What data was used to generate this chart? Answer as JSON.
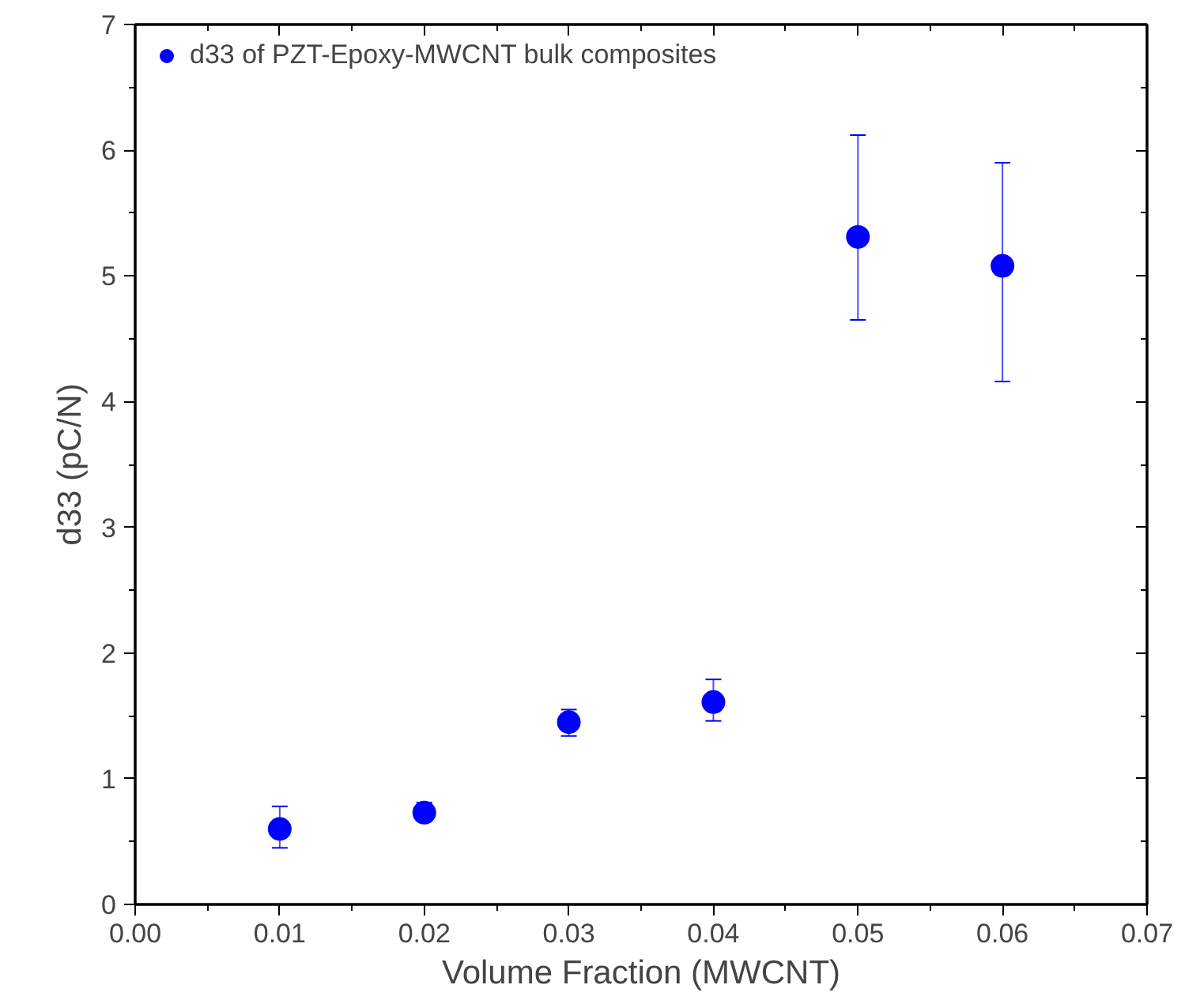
{
  "chart_data": {
    "type": "scatter",
    "xlabel": "Volume Fraction (MWCNT)",
    "ylabel": "d33 (pC/N)",
    "x": [
      0.01,
      0.02,
      0.03,
      0.04,
      0.05,
      0.06
    ],
    "series": [
      {
        "name": "d33 of PZT-Epoxy-MWCNT bulk composites",
        "color": "#0000ff",
        "values": [
          0.6,
          0.73,
          1.45,
          1.61,
          5.31,
          5.08
        ],
        "errors": [
          [
            0.45,
            0.78
          ],
          [
            0.67,
            0.81
          ],
          [
            1.34,
            1.55
          ],
          [
            1.46,
            1.79
          ],
          [
            4.65,
            6.12
          ],
          [
            4.16,
            5.9
          ]
        ]
      }
    ],
    "xlim": [
      0,
      0.07
    ],
    "ylim": [
      0,
      7
    ],
    "xticks": [
      {
        "value": 0,
        "label": "0.00"
      },
      0.01,
      0.02,
      0.03,
      0.04,
      0.05,
      0.06,
      0.07
    ],
    "yticks": [
      0,
      1,
      2,
      3,
      4,
      5,
      6,
      7
    ],
    "marker": "circle",
    "legend": "top left",
    "grid": false
  }
}
